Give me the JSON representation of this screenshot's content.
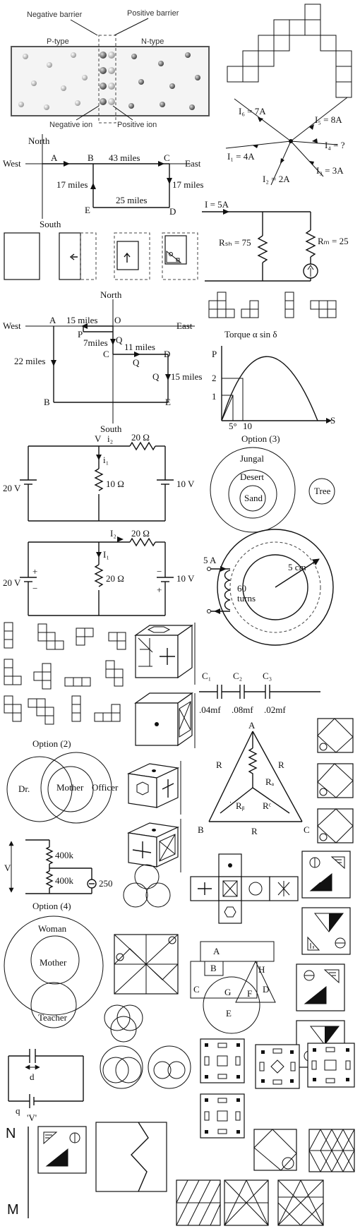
{
  "pn": {
    "negative_barrier": "Negative barrier",
    "positive_barrier": "Positive barrier",
    "p_type": "P-type",
    "n_type": "N-type",
    "negative_ion": "Negative ion",
    "positive_ion": "Positive ion"
  },
  "junction": {
    "i6": "I₆ = 7A",
    "i5": "I₅ = 8A",
    "i4": "I₄ = ?",
    "i1": "I₁ = 4A",
    "i2": "I₂ = 2A",
    "i3": "I₃ = 3A"
  },
  "route1": {
    "north": "North",
    "south": "South",
    "west": "West",
    "east": "East",
    "a": "A",
    "b": "B",
    "c": "C",
    "d": "D",
    "e": "E",
    "d43": "43 miles",
    "d17l": "17 miles",
    "d17r": "17 miles",
    "d25": "25 miles"
  },
  "ammeter": {
    "i": "I = 5A",
    "rsh": "Rₛₕ = 75",
    "rm": "Rₘ = 25"
  },
  "route2": {
    "north": "North",
    "south": "South",
    "west": "West",
    "east": "East",
    "a": "A",
    "o": "O",
    "p": "P",
    "q1": "Q",
    "c": "C",
    "q2": "Q",
    "d": "D",
    "q3": "Q",
    "b": "B",
    "e": "E",
    "d15a": "15 miles",
    "d7": "7miles",
    "d11": "11 miles",
    "d22": "22 miles",
    "d15b": "15 miles"
  },
  "torque": {
    "title": "Torque α sin δ",
    "p": "P",
    "s": "S",
    "t2": "2",
    "t1": "1",
    "t5": "5°",
    "t10": "10"
  },
  "circuit1": {
    "v": "V",
    "i2": "i₂",
    "r20": "20 Ω",
    "i1": "i₁",
    "r10": "10 Ω",
    "v20": "20 V",
    "v10": "10 V"
  },
  "option3": {
    "title": "Option (3)",
    "jungal": "Jungal",
    "desert": "Desert",
    "sand": "Sand",
    "tree": "Tree"
  },
  "circuit2": {
    "i2": "I₂",
    "r20a": "20 Ω",
    "i1": "I₁",
    "r20b": "20 Ω",
    "v20": "20 V",
    "v10": "10 V",
    "plus1": "+",
    "minus1": "−",
    "plus2": "+",
    "minus2": "−"
  },
  "toroid": {
    "current": "5 A",
    "radius": "5 cm",
    "turns1": "60",
    "turns2": "turns"
  },
  "capacitors": {
    "c1": "C₁",
    "c2": "C₂",
    "c3": "C₃",
    "v1": ".04mf",
    "v2": ".08mf",
    "v3": ".02mf"
  },
  "delta": {
    "a": "A",
    "b": "B",
    "c": "C",
    "r1": "R",
    "r2": "R",
    "r3": "R",
    "r4": "R",
    "ra": "Rₐ",
    "rb": "Rᵦ",
    "rc": "Rᶜ"
  },
  "option2": {
    "title": "Option (2)",
    "dr": "Dr.",
    "mother": "Mother",
    "officer": "Officer"
  },
  "divider": {
    "v": "V",
    "r1": "400k",
    "r2": "400k",
    "meter": "250"
  },
  "option4": {
    "title": "Option (4)",
    "woman": "Woman",
    "mother": "Mother",
    "teacher": "Teacher"
  },
  "shapes": {
    "a": "A",
    "b": "B",
    "c": "C",
    "d": "D",
    "e": "E",
    "f": "F",
    "g": "G",
    "h": "H"
  },
  "capacitor_circuit": {
    "d": "d",
    "q": "q",
    "v": "'V'"
  },
  "mirror": {
    "n": "N",
    "m": "M"
  }
}
